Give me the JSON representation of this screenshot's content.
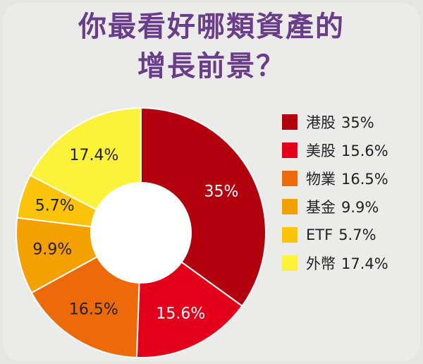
{
  "title_lines": [
    "你最看好哪類資產的",
    "增長前景？"
  ],
  "chart_data": {
    "type": "pie",
    "donut": true,
    "categories": [
      "港股",
      "美股",
      "物業",
      "基金",
      "ETF",
      "外幣"
    ],
    "values": [
      35,
      15.6,
      16.5,
      9.9,
      5.7,
      17.4
    ],
    "data_labels": [
      "35%",
      "15.6%",
      "16.5%",
      "9.9%",
      "5.7%",
      "17.4%"
    ],
    "legend_values": [
      "35%",
      "15.6%",
      "16.5%",
      "9.9%",
      "5.7%",
      "17.4%"
    ],
    "colors": [
      "#b2000e",
      "#e3001b",
      "#ec6a0a",
      "#f4a100",
      "#fbc40a",
      "#fdf23a"
    ],
    "label_colors": [
      "#ffffff",
      "#ffffff",
      "#222222",
      "#222222",
      "#222222",
      "#222222"
    ],
    "legend_position": "right",
    "start": "top",
    "direction": "clockwise"
  }
}
